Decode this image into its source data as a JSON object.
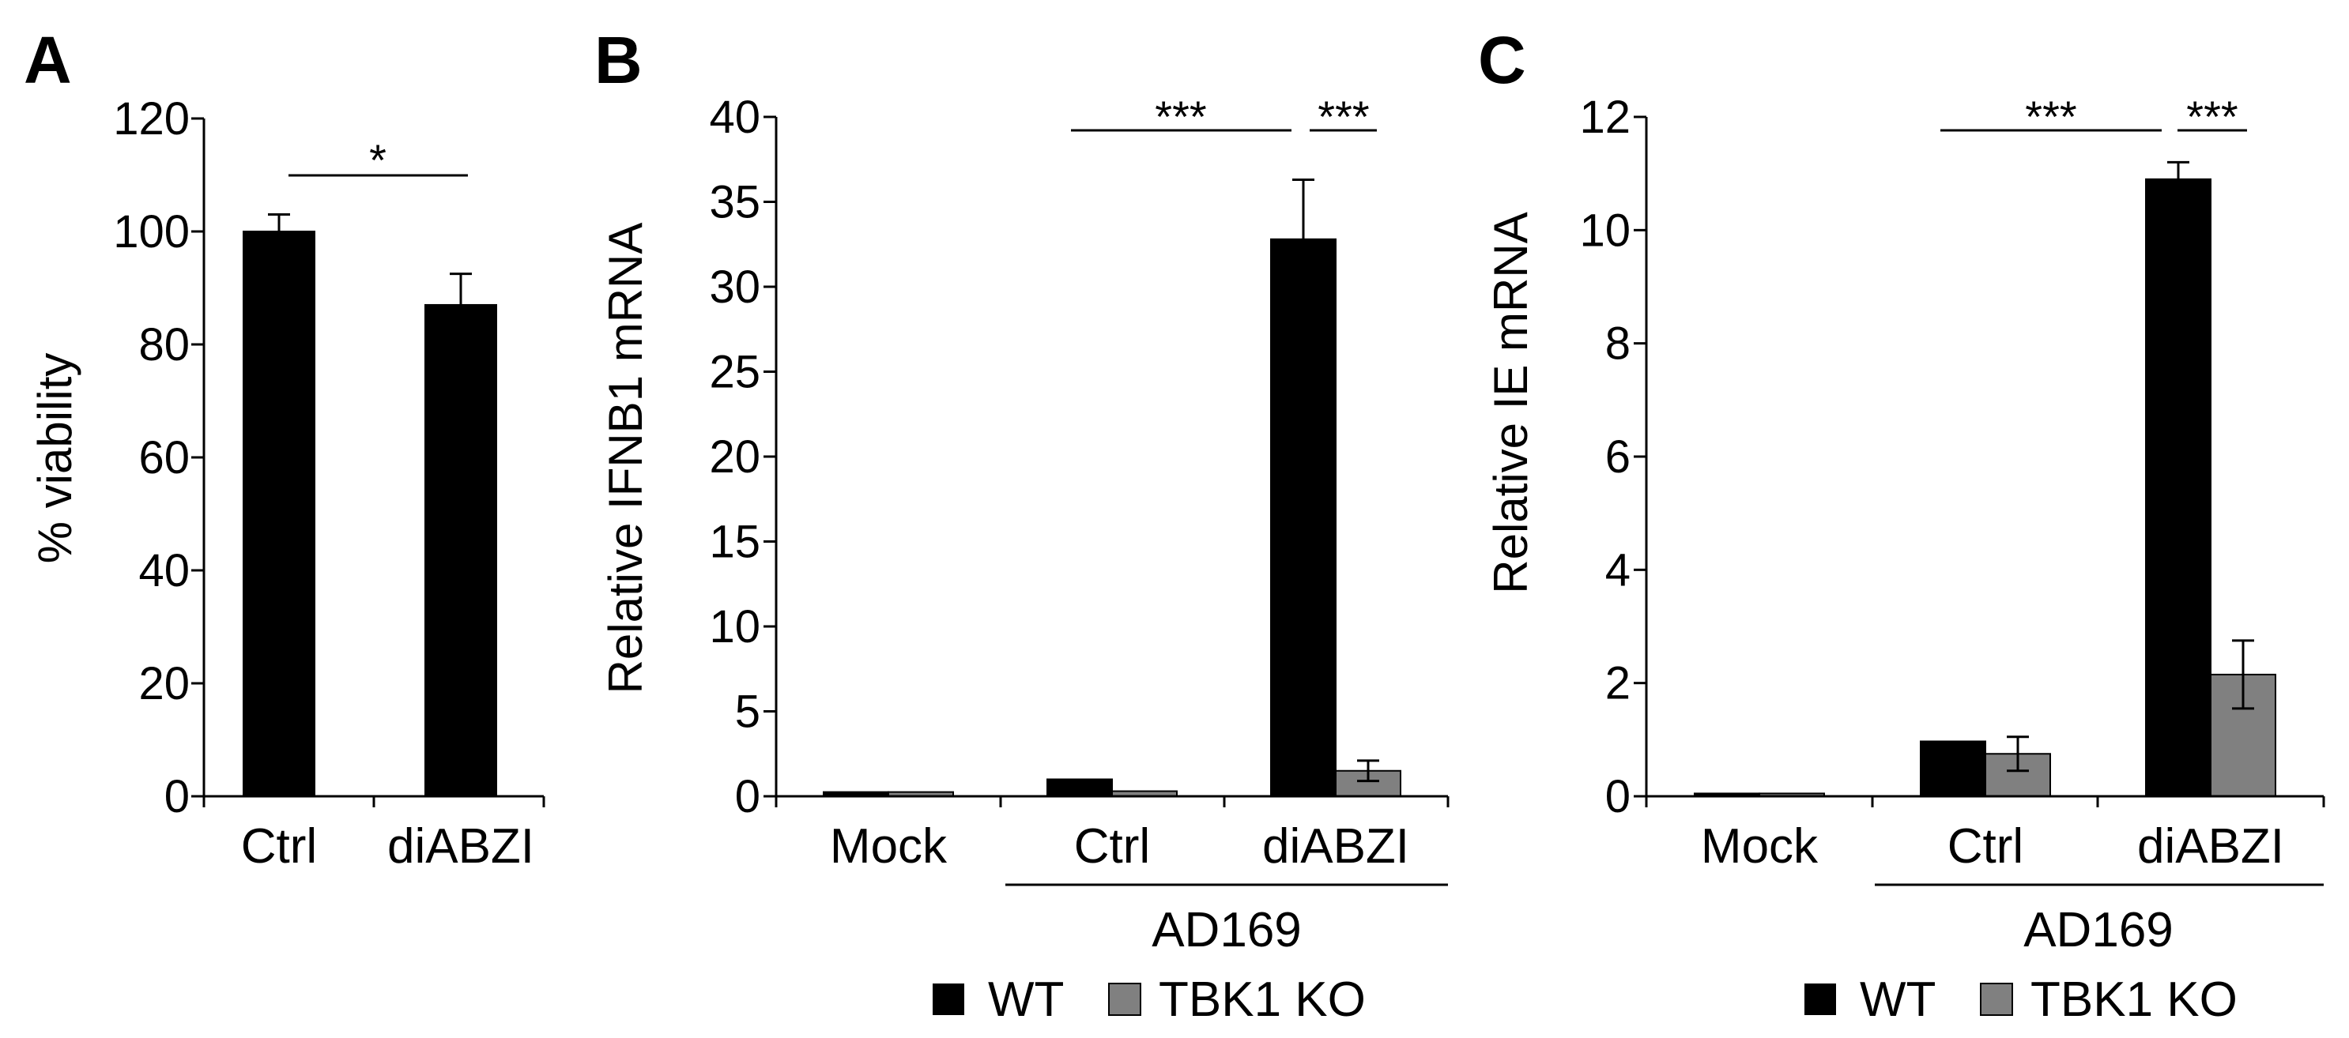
{
  "chart_data": [
    {
      "panel": "A",
      "type": "bar",
      "categories": [
        "Ctrl",
        "diABZI"
      ],
      "series": [
        {
          "values": [
            100,
            87
          ],
          "errors": [
            3,
            5.5
          ]
        }
      ],
      "ylabel": "% viability",
      "ylim": [
        0,
        120
      ],
      "yticks": [
        "0",
        "20",
        "40",
        "60",
        "80",
        "100",
        "120"
      ],
      "significance": [
        {
          "from": "Ctrl",
          "to": "diABZI",
          "label": "*"
        }
      ],
      "colors": {
        "series": [
          "#000000"
        ]
      }
    },
    {
      "panel": "B",
      "type": "bar",
      "categories": [
        "Mock",
        "Ctrl",
        "diABZI"
      ],
      "group_label": "AD169",
      "grouped_categories": [
        "Ctrl",
        "diABZI"
      ],
      "series": [
        {
          "name": "WT",
          "values": [
            0.25,
            1.0,
            32.8
          ],
          "errors": [
            0,
            0,
            3.5
          ]
        },
        {
          "name": "TBK1 KO",
          "values": [
            0.25,
            0.3,
            1.5
          ],
          "errors": [
            0,
            0,
            0.6
          ]
        }
      ],
      "ylabel": "Relative IFNB1 mRNA",
      "ylim": [
        0,
        40
      ],
      "yticks": [
        "0",
        "5",
        "10",
        "15",
        "20",
        "25",
        "30",
        "35",
        "40"
      ],
      "significance": [
        {
          "from": "Ctrl",
          "to": "diABZI WT",
          "label": "***"
        },
        {
          "from": "diABZI WT",
          "to": "diABZI TBK1 KO",
          "label": "***"
        }
      ],
      "legend": [
        "WT",
        "TBK1 KO"
      ],
      "colors": {
        "series": [
          "#000000",
          "#808080"
        ]
      }
    },
    {
      "panel": "C",
      "type": "bar",
      "categories": [
        "Mock",
        "Ctrl",
        "diABZI"
      ],
      "group_label": "AD169",
      "grouped_categories": [
        "Ctrl",
        "diABZI"
      ],
      "series": [
        {
          "name": "WT",
          "values": [
            0.05,
            0.97,
            10.9
          ],
          "errors": [
            0,
            0,
            0.3
          ]
        },
        {
          "name": "TBK1 KO",
          "values": [
            0.05,
            0.75,
            2.15
          ],
          "errors": [
            0,
            0.3,
            0.6
          ]
        }
      ],
      "ylabel": "Relative IE mRNA",
      "ylim": [
        0,
        12
      ],
      "yticks": [
        "0",
        "2",
        "4",
        "6",
        "8",
        "10",
        "12"
      ],
      "significance": [
        {
          "from": "Ctrl",
          "to": "diABZI WT",
          "label": "***"
        },
        {
          "from": "diABZI WT",
          "to": "diABZI TBK1 KO",
          "label": "***"
        }
      ],
      "legend": [
        "WT",
        "TBK1 KO"
      ],
      "colors": {
        "series": [
          "#000000",
          "#808080"
        ]
      }
    }
  ]
}
